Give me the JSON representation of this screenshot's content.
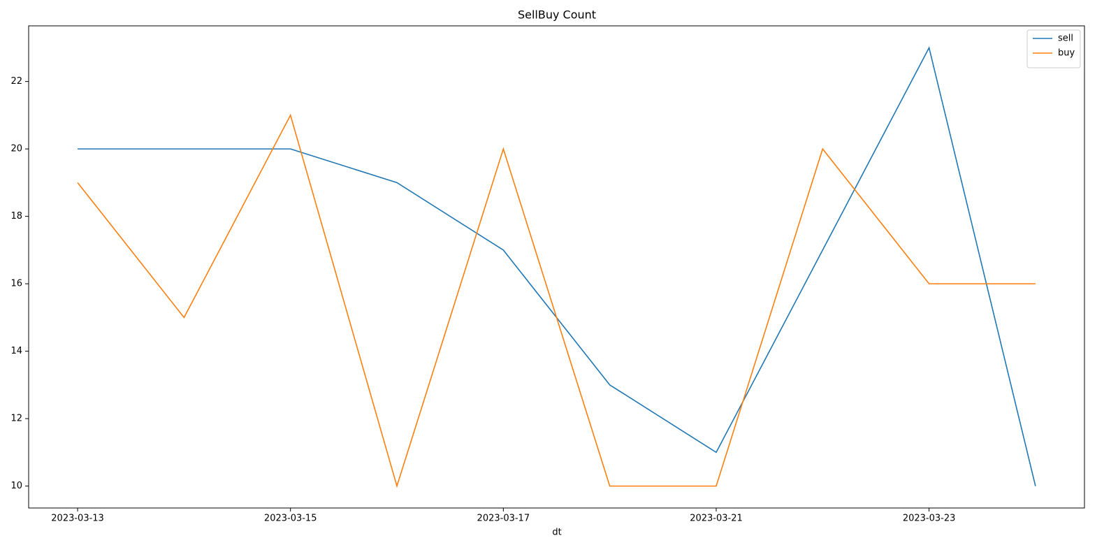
{
  "chart_data": {
    "type": "line",
    "title": "SellBuy Count",
    "x_label": "dt",
    "categories": [
      "2023-03-13",
      null,
      "2023-03-15",
      null,
      "2023-03-17",
      null,
      "2023-03-21",
      null,
      "2023-03-23",
      null
    ],
    "series": [
      {
        "name": "sell",
        "color": "#1f77b4",
        "values": [
          20,
          20,
          20,
          19,
          17,
          13,
          11,
          17,
          23,
          10
        ]
      },
      {
        "name": "buy",
        "color": "#ff7f0e",
        "values": [
          19,
          15,
          21,
          10,
          20,
          10,
          10,
          20,
          16,
          16
        ]
      }
    ],
    "xlim": [
      -0.46,
      9.46
    ],
    "ylim": [
      9.35,
      23.65
    ],
    "yticks": [
      10,
      12,
      14,
      16,
      18,
      20,
      22
    ],
    "legend": "upper right",
    "grid": false
  }
}
